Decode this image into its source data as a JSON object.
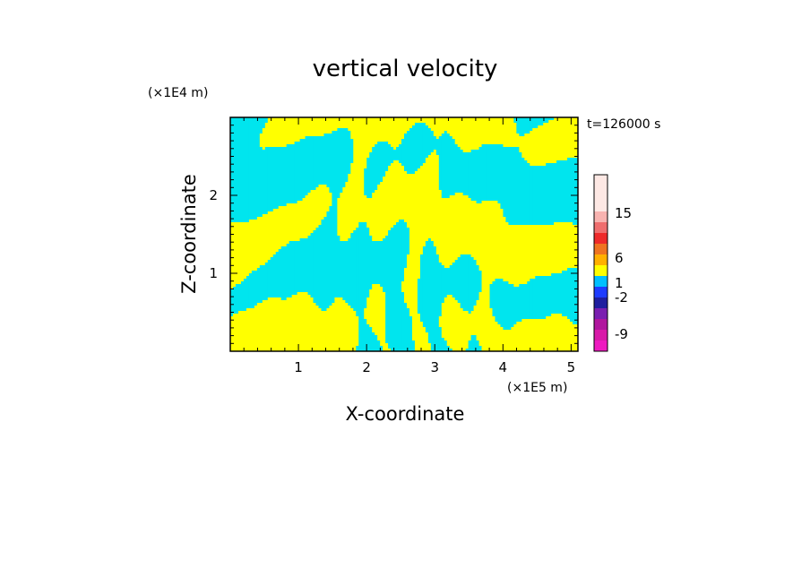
{
  "chart_data": {
    "type": "heatmap",
    "title": "vertical velocity",
    "xlabel": "X-coordinate",
    "ylabel": "Z-coordinate",
    "x_unit": "(×1E5 m)",
    "y_unit": "(×1E4 m)",
    "time_label": "t=126000 s",
    "xlim": [
      0,
      5.1
    ],
    "ylim": [
      0,
      3.0
    ],
    "x_ticks": [
      1,
      2,
      3,
      4,
      5
    ],
    "y_ticks": [
      1,
      2
    ],
    "field_colors": {
      "negative": "#00e5ee",
      "positive": "#ffff00"
    },
    "colorbar": {
      "tick_labels": [
        "15",
        "6",
        "1",
        "-2",
        "-9"
      ],
      "colors": [
        "#f8b3b0",
        "#ef6e6e",
        "#ee2a2a",
        "#ef7321",
        "#ffb000",
        "#ffff00",
        "#00bfff",
        "#1e3cff",
        "#1f1f9f",
        "#7a1fb0",
        "#b0169e",
        "#d81aa8",
        "#ee1ac0"
      ]
    }
  }
}
